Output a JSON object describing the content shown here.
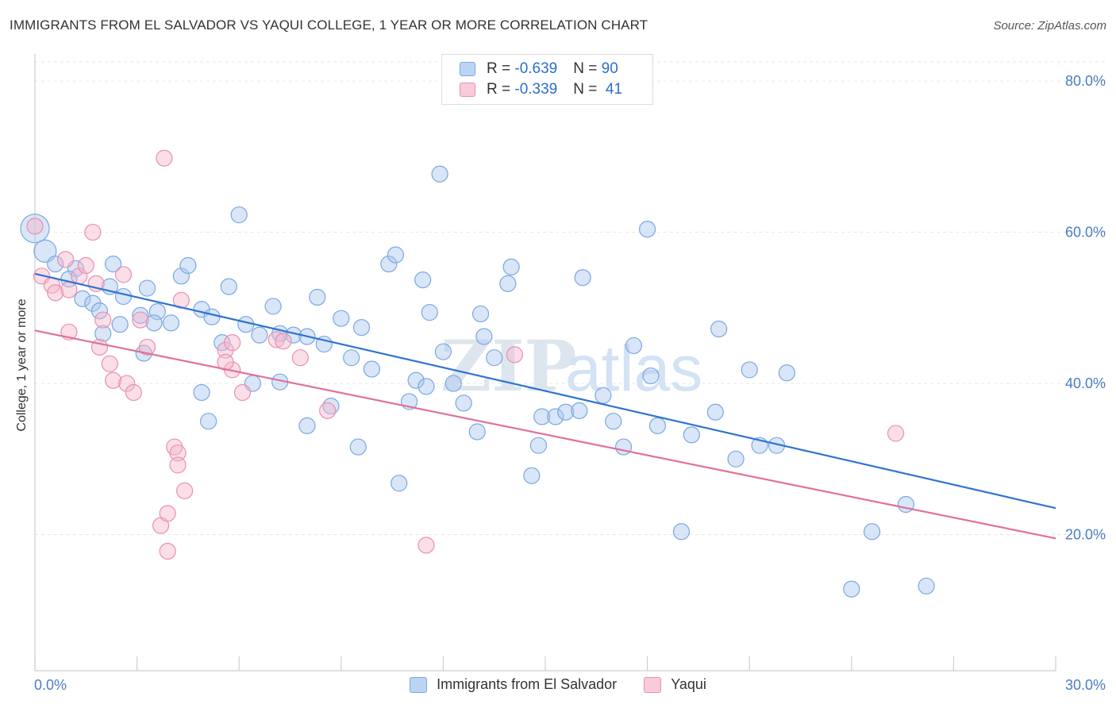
{
  "header": {
    "title": "IMMIGRANTS FROM EL SALVADOR VS YAQUI COLLEGE, 1 YEAR OR MORE CORRELATION CHART",
    "source": "Source: ZipAtlas.com"
  },
  "watermark": {
    "zip": "ZIP",
    "atlas": "atlas"
  },
  "legend": {
    "rows": [
      {
        "r_label": "R = ",
        "r_value": "-0.639",
        "n_label": "N = ",
        "n_value": "90"
      },
      {
        "r_label": "R = ",
        "r_value": "-0.339",
        "n_label": "N = ",
        "n_value": " 41"
      }
    ]
  },
  "chart_data": {
    "type": "scatter",
    "title": "IMMIGRANTS FROM EL SALVADOR VS YAQUI COLLEGE, 1 YEAR OR MORE CORRELATION CHART",
    "xlabel": "",
    "ylabel": "College, 1 year or more",
    "xlim": [
      0,
      30
    ],
    "ylim": [
      2,
      84
    ],
    "x_tick_labels": [
      "0.0%",
      "30.0%"
    ],
    "y_ticks": [
      20,
      40,
      60,
      80
    ],
    "y_tick_labels": [
      "20.0%",
      "40.0%",
      "60.0%",
      "80.0%"
    ],
    "grid": true,
    "legend_position": "top-center",
    "colors": {
      "blue_fill": "#a9c8f0",
      "blue_stroke": "#7aa7e0",
      "blue_line": "#2f74d0",
      "pink_fill": "#f5b6cb",
      "pink_stroke": "#ea8fae",
      "pink_line": "#e0719a"
    },
    "series": [
      {
        "name": "Immigrants from El Salvador",
        "color": "#a9c8f0",
        "trend": {
          "x": [
            0,
            30
          ],
          "y": [
            54.5,
            23.5
          ]
        },
        "points": [
          [
            0,
            60.5
          ],
          [
            0.3,
            57.5
          ],
          [
            0.6,
            55.8
          ],
          [
            1.2,
            55.2
          ],
          [
            1.0,
            53.8
          ],
          [
            1.4,
            51.2
          ],
          [
            1.7,
            50.6
          ],
          [
            2.3,
            55.8
          ],
          [
            2.2,
            52.8
          ],
          [
            1.9,
            49.6
          ],
          [
            2.6,
            51.5
          ],
          [
            2.5,
            47.8
          ],
          [
            3.1,
            49.0
          ],
          [
            3.6,
            49.5
          ],
          [
            3.5,
            48.0
          ],
          [
            4.0,
            48.0
          ],
          [
            3.2,
            44.0
          ],
          [
            4.3,
            54.2
          ],
          [
            4.5,
            55.6
          ],
          [
            4.9,
            49.8
          ],
          [
            5.2,
            48.8
          ],
          [
            5.7,
            52.8
          ],
          [
            6.0,
            62.3
          ],
          [
            6.2,
            47.8
          ],
          [
            5.5,
            45.4
          ],
          [
            6.6,
            46.4
          ],
          [
            7.0,
            50.2
          ],
          [
            7.2,
            46.6
          ],
          [
            7.6,
            46.4
          ],
          [
            8.0,
            46.2
          ],
          [
            8.3,
            51.4
          ],
          [
            8.5,
            45.2
          ],
          [
            9.0,
            48.6
          ],
          [
            9.3,
            43.4
          ],
          [
            9.6,
            47.4
          ],
          [
            9.9,
            41.9
          ],
          [
            10.4,
            55.8
          ],
          [
            10.6,
            57.0
          ],
          [
            11.2,
            40.4
          ],
          [
            11.5,
            39.6
          ],
          [
            11.4,
            53.7
          ],
          [
            11.6,
            49.4
          ],
          [
            12.0,
            44.2
          ],
          [
            11.9,
            67.7
          ],
          [
            12.3,
            40.0
          ],
          [
            12.6,
            37.4
          ],
          [
            13.1,
            49.2
          ],
          [
            13.2,
            46.2
          ],
          [
            13.5,
            43.4
          ],
          [
            13.9,
            53.2
          ],
          [
            14.0,
            55.4
          ],
          [
            14.6,
            27.8
          ],
          [
            14.9,
            35.6
          ],
          [
            15.3,
            35.6
          ],
          [
            15.6,
            36.2
          ],
          [
            16.1,
            54.0
          ],
          [
            16.7,
            38.4
          ],
          [
            17.0,
            35.0
          ],
          [
            17.3,
            31.6
          ],
          [
            17.6,
            45.0
          ],
          [
            18.0,
            60.4
          ],
          [
            18.1,
            41.0
          ],
          [
            18.3,
            34.4
          ],
          [
            19.3,
            33.2
          ],
          [
            19.0,
            20.4
          ],
          [
            20.0,
            36.2
          ],
          [
            20.1,
            47.2
          ],
          [
            20.6,
            30.0
          ],
          [
            21.0,
            41.8
          ],
          [
            21.3,
            31.8
          ],
          [
            21.8,
            31.8
          ],
          [
            22.1,
            41.4
          ],
          [
            4.9,
            38.8
          ],
          [
            5.1,
            35.0
          ],
          [
            6.4,
            40.0
          ],
          [
            7.2,
            40.2
          ],
          [
            8.0,
            34.4
          ],
          [
            8.7,
            37.0
          ],
          [
            9.5,
            31.6
          ],
          [
            10.7,
            26.8
          ],
          [
            11.0,
            37.6
          ],
          [
            13.0,
            33.6
          ],
          [
            24.0,
            12.8
          ],
          [
            24.6,
            20.4
          ],
          [
            25.6,
            24.0
          ],
          [
            26.2,
            13.2
          ],
          [
            14.8,
            31.8
          ],
          [
            16.0,
            36.4
          ],
          [
            3.3,
            52.6
          ],
          [
            2.0,
            46.6
          ]
        ],
        "sizes": [
          20,
          14,
          11
        ]
      },
      {
        "name": "Yaqui",
        "color": "#f5b6cb",
        "trend": {
          "x": [
            0,
            30
          ],
          "y": [
            47.0,
            19.5
          ]
        },
        "points": [
          [
            0,
            60.8
          ],
          [
            0.2,
            54.2
          ],
          [
            0.5,
            53.0
          ],
          [
            0.6,
            52.0
          ],
          [
            0.9,
            56.4
          ],
          [
            1.0,
            52.4
          ],
          [
            1.3,
            54.2
          ],
          [
            1.5,
            55.6
          ],
          [
            1.7,
            60.0
          ],
          [
            1.8,
            53.2
          ],
          [
            2.0,
            48.4
          ],
          [
            1.0,
            46.8
          ],
          [
            1.9,
            44.8
          ],
          [
            2.2,
            42.6
          ],
          [
            2.3,
            40.4
          ],
          [
            2.6,
            54.4
          ],
          [
            2.7,
            40.0
          ],
          [
            2.9,
            38.8
          ],
          [
            3.1,
            48.4
          ],
          [
            3.3,
            44.8
          ],
          [
            3.8,
            69.8
          ],
          [
            4.3,
            51.0
          ],
          [
            4.1,
            31.6
          ],
          [
            4.2,
            30.8
          ],
          [
            4.2,
            29.2
          ],
          [
            4.4,
            25.8
          ],
          [
            3.7,
            21.2
          ],
          [
            3.9,
            22.8
          ],
          [
            3.9,
            17.8
          ],
          [
            5.6,
            44.4
          ],
          [
            5.8,
            45.4
          ],
          [
            5.8,
            41.8
          ],
          [
            6.1,
            38.8
          ],
          [
            7.1,
            45.8
          ],
          [
            7.8,
            43.4
          ],
          [
            5.6,
            42.8
          ],
          [
            7.3,
            45.6
          ],
          [
            8.6,
            36.4
          ],
          [
            11.5,
            18.6
          ],
          [
            14.1,
            43.8
          ],
          [
            25.3,
            33.4
          ]
        ],
        "sizes": [
          14,
          11
        ]
      }
    ]
  }
}
